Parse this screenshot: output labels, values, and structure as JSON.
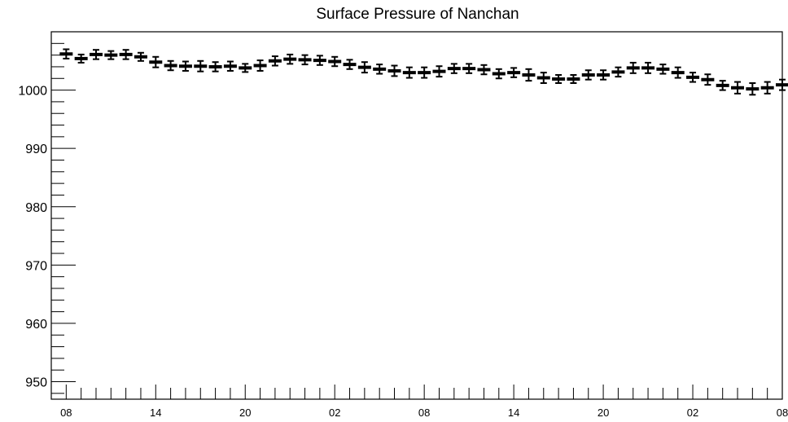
{
  "chart_data": {
    "type": "scatter",
    "title": "Surface Pressure of Nanchan",
    "xlabel": "",
    "ylabel": "",
    "ylim": [
      947,
      1010
    ],
    "xlim": [
      -1,
      48
    ],
    "grid": false,
    "legend": "none",
    "y_ticks": [
      "950",
      "960",
      "970",
      "980",
      "990",
      "1000"
    ],
    "x_ticks": [
      {
        "hour": 0,
        "label": "08"
      },
      {
        "hour": 6,
        "label": "14"
      },
      {
        "hour": 12,
        "label": "20"
      },
      {
        "hour": 18,
        "label": "02"
      },
      {
        "hour": 24,
        "label": "08"
      },
      {
        "hour": 30,
        "label": "14"
      },
      {
        "hour": 36,
        "label": "20"
      },
      {
        "hour": 42,
        "label": "02"
      },
      {
        "hour": 48,
        "label": "08"
      }
    ],
    "series": [
      {
        "x": [
          0,
          1,
          2,
          3,
          4,
          5,
          6,
          7,
          8,
          9,
          10,
          11,
          12,
          13,
          14,
          15,
          16,
          17,
          18,
          19,
          20,
          21,
          22,
          23,
          24,
          25,
          26,
          27,
          28,
          29,
          30,
          31,
          32,
          33,
          34,
          35,
          36,
          37,
          38,
          39,
          40,
          41,
          42,
          43,
          44,
          45,
          46,
          47,
          48
        ],
        "y": [
          1006.2,
          1005.4,
          1006.1,
          1006.0,
          1006.1,
          1005.7,
          1004.8,
          1004.2,
          1004.1,
          1004.1,
          1004.0,
          1004.1,
          1003.8,
          1004.2,
          1005.0,
          1005.3,
          1005.2,
          1005.1,
          1004.9,
          1004.4,
          1003.9,
          1003.6,
          1003.3,
          1003.0,
          1003.0,
          1003.2,
          1003.7,
          1003.7,
          1003.5,
          1002.8,
          1003.0,
          1002.6,
          1002.1,
          1001.9,
          1001.9,
          1002.6,
          1002.6,
          1003.1,
          1003.8,
          1003.8,
          1003.6,
          1003.0,
          1002.2,
          1001.8,
          1000.8,
          1000.4,
          1000.2,
          1000.4,
          1000.9
        ],
        "err": [
          0.8,
          0.7,
          0.8,
          0.7,
          0.8,
          0.7,
          0.9,
          0.8,
          0.8,
          0.9,
          0.8,
          0.8,
          0.7,
          0.9,
          0.8,
          0.8,
          0.8,
          0.8,
          0.8,
          0.8,
          0.9,
          0.8,
          0.9,
          0.9,
          0.9,
          0.9,
          0.8,
          0.8,
          0.8,
          0.8,
          0.8,
          1.0,
          0.9,
          0.7,
          0.7,
          0.8,
          0.8,
          0.8,
          0.9,
          0.9,
          0.8,
          0.9,
          0.8,
          0.9,
          0.8,
          1.0,
          1.0,
          1.0,
          0.9
        ]
      }
    ]
  }
}
